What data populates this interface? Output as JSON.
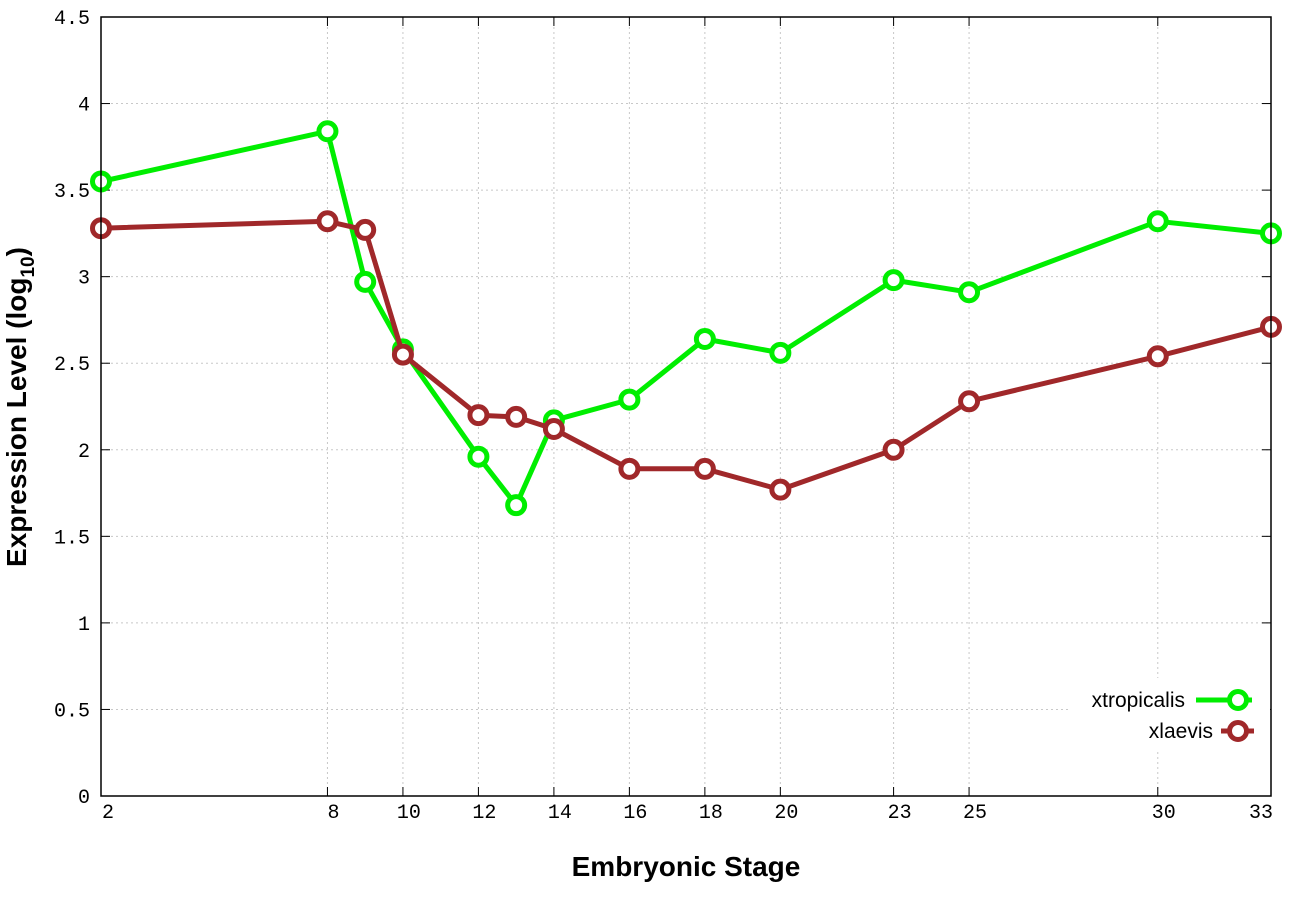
{
  "chart_data": {
    "type": "line",
    "xlabel": "Embryonic Stage",
    "ylabel_main": "Expression Level (log",
    "ylabel_sub": "10",
    "ylabel_close": ")",
    "xlim": [
      2,
      33
    ],
    "ylim": [
      0,
      4.5
    ],
    "x_ticks": [
      2,
      8,
      10,
      12,
      14,
      16,
      18,
      20,
      23,
      25,
      30,
      33
    ],
    "y_ticks": [
      0,
      0.5,
      1,
      1.5,
      2,
      2.5,
      3,
      3.5,
      4,
      4.5
    ],
    "y_tick_labels": [
      "0",
      "0.5",
      "1",
      "1.5",
      "2",
      "2.5",
      "3",
      "3.5",
      "4",
      "4.5"
    ],
    "grid": true,
    "legend_position": "bottom-right",
    "series": [
      {
        "name": "xtropicalis",
        "color": "#00ee00",
        "x": [
          2,
          8,
          9,
          10,
          12,
          13,
          14,
          16,
          18,
          20,
          23,
          25,
          30,
          33
        ],
        "y": [
          3.55,
          3.84,
          2.97,
          2.58,
          1.96,
          1.68,
          2.17,
          2.29,
          2.64,
          2.56,
          2.98,
          2.91,
          3.32,
          3.25
        ]
      },
      {
        "name": "xlaevis",
        "color": "#a0282a",
        "x": [
          2,
          8,
          9,
          10,
          12,
          13,
          14,
          16,
          18,
          20,
          23,
          25,
          30,
          33
        ],
        "y": [
          3.28,
          3.32,
          3.27,
          2.55,
          2.2,
          2.19,
          2.12,
          1.89,
          1.89,
          1.77,
          2.0,
          2.28,
          2.54,
          2.71
        ]
      }
    ]
  }
}
